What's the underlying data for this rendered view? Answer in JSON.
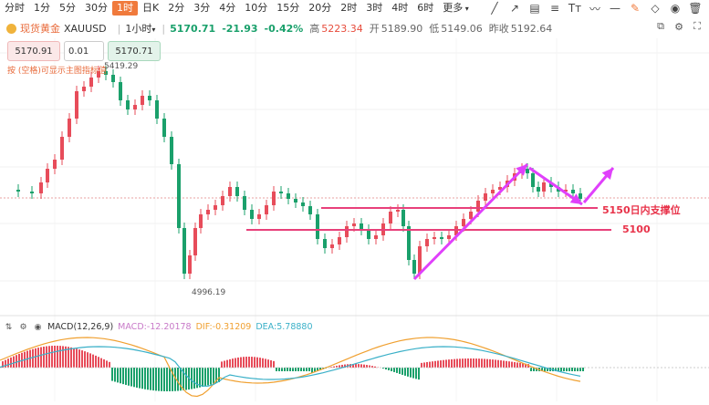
{
  "toolbar": {
    "timeframes": [
      {
        "label": "分时",
        "active": false
      },
      {
        "label": "1分",
        "active": false
      },
      {
        "label": "5分",
        "active": false
      },
      {
        "label": "30分",
        "active": false
      },
      {
        "label": "1时",
        "active": true
      },
      {
        "label": "日K",
        "active": false
      },
      {
        "label": "2分",
        "active": false
      },
      {
        "label": "3分",
        "active": false
      },
      {
        "label": "4分",
        "active": false
      },
      {
        "label": "10分",
        "active": false
      },
      {
        "label": "15分",
        "active": false
      },
      {
        "label": "20分",
        "active": false
      },
      {
        "label": "2时",
        "active": false
      },
      {
        "label": "3时",
        "active": false
      },
      {
        "label": "4时",
        "active": false
      },
      {
        "label": "6时",
        "active": false
      },
      {
        "label": "更多",
        "active": false
      }
    ],
    "right_icons": [
      "trend-line-icon",
      "ray-icon",
      "parallel-channel-icon",
      "fibonacci-icon",
      "text-icon",
      "brush-icon",
      "horizontal-line-icon",
      "edit-icon",
      "eraser-icon",
      "eye-icon",
      "delete-icon"
    ]
  },
  "symbol": {
    "name": "现货黄金",
    "code": "XAUUSD",
    "period": "1小时",
    "period_arrow": "▾",
    "price": "5170.71",
    "change": "-21.93",
    "change_pct": "-0.42%",
    "high_label": "高",
    "high": "5223.34",
    "open_label": "开",
    "open": "5189.90",
    "low_label": "低",
    "low": "5149.06",
    "prev_label": "昨收",
    "prev": "5192.64"
  },
  "order": {
    "sell_price": "5170.91",
    "quantity": "0.01",
    "buy_price": "5170.71",
    "hint": "按 (空格)可显示主图指标值"
  },
  "right_tools": [
    "screenshot-icon",
    "settings-icon",
    "fullscreen-icon"
  ],
  "labels": {
    "high_mark": "5419.29",
    "low_mark": "4996.19",
    "support_label": "5150日内支撑位",
    "level_label": "5100"
  },
  "macd": {
    "title": "MACD(12,26,9)",
    "macd_text": "MACD:-12.20178",
    "dif_text": "DIF:-0.31209",
    "dea_text": "DEA:5.78880"
  },
  "colors": {
    "up": "#e74c5a",
    "down": "#1aa06b",
    "arrow": "#e040fb",
    "support_line": "#e8407a",
    "dif": "#f0a030",
    "dea": "#3ab0c8"
  }
}
